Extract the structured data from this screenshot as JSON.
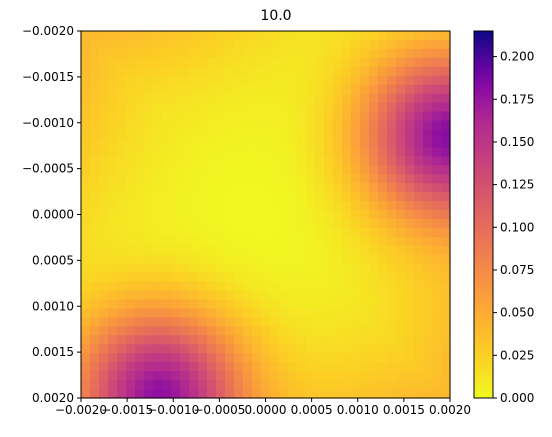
{
  "chart_data": {
    "type": "heatmap",
    "title": "10.0",
    "xlabel": "",
    "ylabel": "",
    "x_range": [
      -0.002,
      0.002
    ],
    "y_range": [
      -0.002,
      0.002
    ],
    "y_inverted": true,
    "grid_size": 41,
    "x_ticks": [
      "−0.0020",
      "−0.0015",
      "−0.0010",
      "−0.0005",
      "0.0000",
      "0.0005",
      "0.0010",
      "0.0015",
      "0.0020"
    ],
    "y_ticks": [
      "−0.0020",
      "−0.0015",
      "−0.0010",
      "−0.0005",
      "0.0000",
      "0.0005",
      "0.0010",
      "0.0015",
      "0.0020"
    ],
    "colorbar": {
      "colormap": "plasma_r",
      "range": [
        0,
        0.215
      ],
      "ticks": [
        "0.000",
        "0.025",
        "0.050",
        "0.075",
        "0.100",
        "0.125",
        "0.150",
        "0.175",
        "0.200"
      ]
    },
    "reference_values": [
      {
        "x": -0.002,
        "y": -0.002,
        "value": 0.0
      },
      {
        "x": 0.002,
        "y": -0.001,
        "value": 0.215
      },
      {
        "x": -0.0012,
        "y": 0.002,
        "value": 0.215
      },
      {
        "x": 0.0,
        "y": 0.0,
        "value": 0.01
      },
      {
        "x": 0.002,
        "y": 0.002,
        "value": 0.0
      },
      {
        "x": -0.002,
        "y": 0.0,
        "value": 0.06
      },
      {
        "x": 0.001,
        "y": -0.002,
        "value": 0.09
      }
    ]
  }
}
